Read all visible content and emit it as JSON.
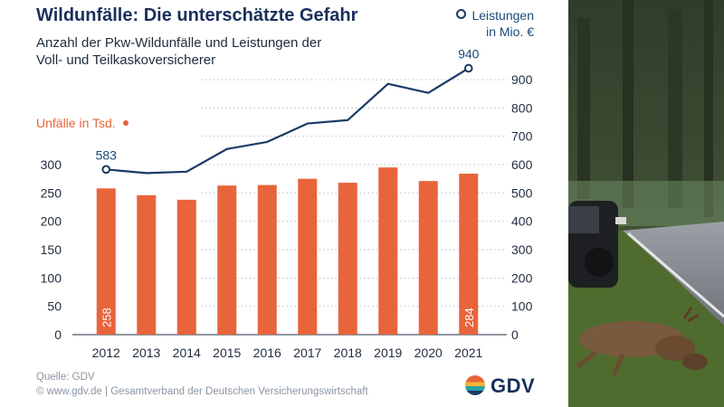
{
  "title": "Wildunfälle: Die unterschätzte Gefahr",
  "subtitle": "Anzahl der Pkw-Wildunfälle und Leistungen der Voll- und Teilkaskoversicherer",
  "legend_right_line1": "Leistungen",
  "legend_right_line2": "in Mio. €",
  "legend_left": "Unfälle in Tsd.",
  "footer": {
    "source": "Quelle: GDV",
    "copyright": "©  www.gdv.de  |  Gesamtverband der Deutschen Versicherungswirtschaft"
  },
  "logo_text": "GDV",
  "colors": {
    "bar": "#e8643b",
    "line": "#1a3a66",
    "title": "#1a2f5a",
    "text": "#1f2d3d",
    "grid": "#b9c2cc"
  },
  "chart_data": {
    "type": "bar",
    "categories": [
      "2012",
      "2013",
      "2014",
      "2015",
      "2016",
      "2017",
      "2018",
      "2019",
      "2020",
      "2021"
    ],
    "series": [
      {
        "name": "Unfälle in Tsd.",
        "type": "bar",
        "axis": "left",
        "values": [
          258,
          246,
          238,
          263,
          264,
          275,
          268,
          295,
          271,
          284
        ]
      },
      {
        "name": "Leistungen in Mio. €",
        "type": "line",
        "axis": "right",
        "values": [
          583,
          570,
          575,
          655,
          680,
          745,
          757,
          885,
          853,
          940
        ]
      }
    ],
    "data_labels": [
      {
        "series": 0,
        "index": 0,
        "text": "258"
      },
      {
        "series": 0,
        "index": 9,
        "text": "284"
      },
      {
        "series": 1,
        "index": 0,
        "text": "583"
      },
      {
        "series": 1,
        "index": 9,
        "text": "940"
      }
    ],
    "left_axis": {
      "ylim": [
        0,
        300
      ],
      "ticks": [
        0,
        50,
        100,
        150,
        200,
        250,
        300
      ]
    },
    "right_axis": {
      "ylim": [
        0,
        900
      ],
      "ticks": [
        0,
        100,
        200,
        300,
        400,
        500,
        600,
        700,
        800,
        900
      ]
    },
    "grid": true
  }
}
